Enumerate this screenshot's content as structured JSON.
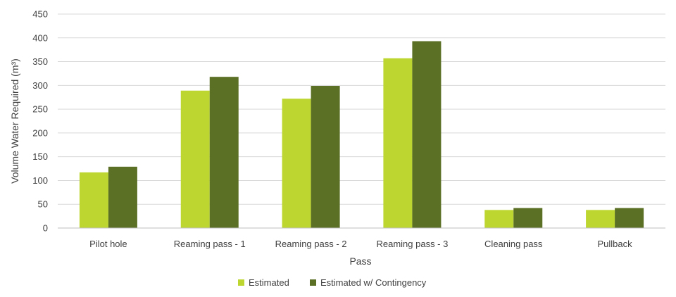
{
  "chart_data": {
    "type": "bar",
    "title": "",
    "xlabel": "Pass",
    "ylabel": "Volume Water Required (m³)",
    "ylim": [
      0,
      450
    ],
    "yticks": [
      0,
      50,
      100,
      150,
      200,
      250,
      300,
      350,
      400,
      450
    ],
    "grid": true,
    "legend_position": "bottom",
    "categories": [
      "Pilot hole",
      "Reaming pass - 1",
      "Reaming pass - 2",
      "Reaming pass - 3",
      "Cleaning pass",
      "Pullback"
    ],
    "series": [
      {
        "name": "Estimated",
        "color": "#bdd630",
        "values": [
          117,
          289,
          272,
          357,
          38,
          38
        ]
      },
      {
        "name": "Estimated w/ Contingency",
        "color": "#5b7025",
        "values": [
          129,
          318,
          299,
          393,
          42,
          42
        ]
      }
    ]
  }
}
